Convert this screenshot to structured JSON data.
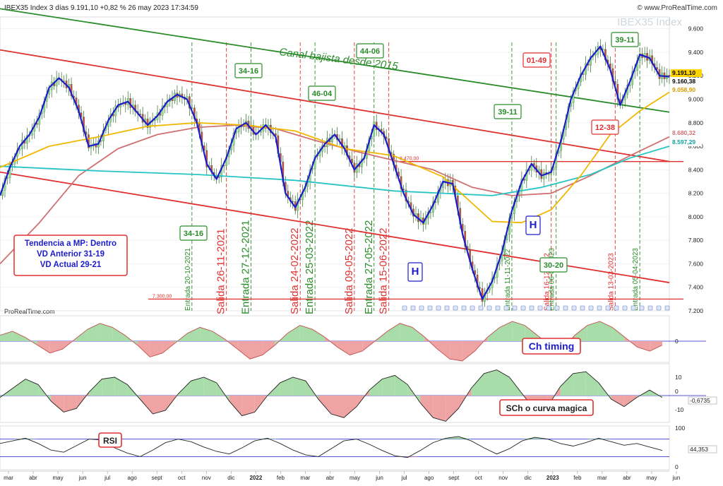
{
  "header": {
    "title": "IBEX35 Index 3 días 9.191,10 +0,82 % 26 may 2023 17:34:59",
    "source": "© www.ProRealTime.com",
    "watermark": "IBEX35 Index",
    "panel_credit": "ProRealTime.com"
  },
  "chart_data": [
    {
      "type": "line",
      "title": "IBEX35 Index 3 días",
      "x_ticks": [
        "mar",
        "abr",
        "may",
        "jun",
        "jul",
        "ago",
        "sept",
        "oct",
        "nov",
        "dic",
        "2022",
        "feb",
        "mar",
        "abr",
        "may",
        "jun",
        "jul",
        "ago",
        "sept",
        "oct",
        "nov",
        "dic",
        "2023",
        "feb",
        "mar",
        "abr",
        "may",
        "jun"
      ],
      "y_ticks": [
        "9.600",
        "9.400",
        "9.200",
        "9.000",
        "8.800",
        "8.600",
        "8.400",
        "8.200",
        "8.000",
        "7.800",
        "7.600",
        "7.400",
        "7.200"
      ],
      "ylim": [
        7200,
        9700
      ],
      "price_labels": [
        {
          "text": "9.191,10",
          "color": "#ffd400"
        },
        {
          "text": "9.160,38",
          "color": "#ffffff"
        },
        {
          "text": "9.058,90",
          "color": "#ffffff"
        },
        {
          "text": "8.680,32",
          "color": "#ffffff"
        },
        {
          "text": "8.597,29",
          "color": "#ffffff"
        }
      ],
      "series": [
        {
          "name": "Cierre",
          "color": "#1c1ccc",
          "points": [
            [
              0,
              8180
            ],
            [
              2,
              8420
            ],
            [
              4,
              8600
            ],
            [
              6,
              8700
            ],
            [
              8,
              8850
            ],
            [
              10,
              9100
            ],
            [
              12,
              9180
            ],
            [
              14,
              9100
            ],
            [
              16,
              8900
            ],
            [
              18,
              8600
            ],
            [
              20,
              8620
            ],
            [
              22,
              8820
            ],
            [
              24,
              8950
            ],
            [
              26,
              8980
            ],
            [
              28,
              8880
            ],
            [
              30,
              8780
            ],
            [
              32,
              8860
            ],
            [
              34,
              8980
            ],
            [
              36,
              9040
            ],
            [
              38,
              9000
            ],
            [
              40,
              8800
            ],
            [
              42,
              8450
            ],
            [
              44,
              8320
            ],
            [
              46,
              8500
            ],
            [
              48,
              8750
            ],
            [
              50,
              8800
            ],
            [
              52,
              8700
            ],
            [
              54,
              8780
            ],
            [
              56,
              8680
            ],
            [
              58,
              8200
            ],
            [
              60,
              8080
            ],
            [
              62,
              8250
            ],
            [
              64,
              8500
            ],
            [
              66,
              8620
            ],
            [
              68,
              8700
            ],
            [
              70,
              8580
            ],
            [
              72,
              8400
            ],
            [
              74,
              8500
            ],
            [
              76,
              8780
            ],
            [
              78,
              8700
            ],
            [
              80,
              8450
            ],
            [
              82,
              8200
            ],
            [
              84,
              8020
            ],
            [
              86,
              7950
            ],
            [
              88,
              8100
            ],
            [
              90,
              8300
            ],
            [
              92,
              8280
            ],
            [
              94,
              7850
            ],
            [
              96,
              7550
            ],
            [
              98,
              7300
            ],
            [
              100,
              7450
            ],
            [
              102,
              7700
            ],
            [
              104,
              8050
            ],
            [
              106,
              8300
            ],
            [
              108,
              8450
            ],
            [
              110,
              8350
            ],
            [
              112,
              8380
            ],
            [
              114,
              8650
            ],
            [
              116,
              9000
            ],
            [
              118,
              9200
            ],
            [
              120,
              9350
            ],
            [
              122,
              9450
            ],
            [
              124,
              9250
            ],
            [
              126,
              8950
            ],
            [
              128,
              9150
            ],
            [
              130,
              9380
            ],
            [
              132,
              9350
            ],
            [
              134,
              9200
            ],
            [
              136,
              9191
            ]
          ]
        },
        {
          "name": "Media móvil 50",
          "color": "#f0b800",
          "points": [
            [
              0,
              8420
            ],
            [
              10,
              8600
            ],
            [
              20,
              8680
            ],
            [
              30,
              8770
            ],
            [
              40,
              8800
            ],
            [
              50,
              8780
            ],
            [
              60,
              8730
            ],
            [
              70,
              8580
            ],
            [
              80,
              8520
            ],
            [
              90,
              8340
            ],
            [
              100,
              7960
            ],
            [
              106,
              7950
            ],
            [
              112,
              8060
            ],
            [
              118,
              8350
            ],
            [
              124,
              8700
            ],
            [
              130,
              8900
            ],
            [
              136,
              9060
            ]
          ]
        },
        {
          "name": "Media móvil 100",
          "color": "#d07070",
          "points": [
            [
              0,
              7600
            ],
            [
              8,
              7950
            ],
            [
              16,
              8350
            ],
            [
              24,
              8580
            ],
            [
              32,
              8700
            ],
            [
              40,
              8760
            ],
            [
              48,
              8780
            ],
            [
              56,
              8750
            ],
            [
              64,
              8650
            ],
            [
              72,
              8560
            ],
            [
              80,
              8480
            ],
            [
              88,
              8400
            ],
            [
              96,
              8250
            ],
            [
              104,
              8180
            ],
            [
              112,
              8200
            ],
            [
              120,
              8350
            ],
            [
              128,
              8520
            ],
            [
              136,
              8680
            ]
          ]
        },
        {
          "name": "Media móvil 200",
          "color": "#28c4c4",
          "points": [
            [
              0,
              8430
            ],
            [
              20,
              8390
            ],
            [
              40,
              8360
            ],
            [
              60,
              8310
            ],
            [
              80,
              8220
            ],
            [
              100,
              8180
            ],
            [
              110,
              8250
            ],
            [
              120,
              8360
            ],
            [
              128,
              8500
            ],
            [
              136,
              8600
            ]
          ]
        }
      ],
      "trend_lines": [
        {
          "color": "#2a8c2a",
          "from": [
            0,
            9770
          ],
          "to": [
            136,
            8890
          ]
        },
        {
          "color": "#e03030",
          "from": [
            0,
            9420
          ],
          "to": [
            136,
            8470
          ]
        },
        {
          "color": "#e03030",
          "from": [
            0,
            8380
          ],
          "to": [
            136,
            7440
          ]
        }
      ],
      "support_lines": [
        {
          "value": 8470,
          "label": "8.470,00"
        },
        {
          "value": 7300,
          "label": "7.300,00"
        }
      ],
      "annotations": {
        "channel": "Canal bajista desde 2015",
        "trend_box": [
          "Tendencia a MP: Dentro",
          "VD Anterior 31-19",
          "VD Actual 29-21"
        ],
        "boxes_green": [
          "34-16",
          "34-16",
          "46-04",
          "44-06",
          "39-11",
          "39-11",
          "30-20"
        ],
        "boxes_red": [
          "01-49",
          "12-38"
        ],
        "boxes_blue": [
          "H",
          "H"
        ],
        "signals": [
          {
            "t": "Entrada 20-10-2021",
            "c": "#2a8c2a"
          },
          {
            "t": "Salida 26-11-2021",
            "c": "#e03030"
          },
          {
            "t": "Entrada 27-12-2021",
            "c": "#2a8c2a"
          },
          {
            "t": "Salida 24-02-2022",
            "c": "#e03030"
          },
          {
            "t": "Entrada 25-03-2022",
            "c": "#2a8c2a"
          },
          {
            "t": "Salida 09-05-2022",
            "c": "#e03030"
          },
          {
            "t": "Entrada 27-05-2022",
            "c": "#2a8c2a"
          },
          {
            "t": "Salida 15-06-2022",
            "c": "#e03030"
          },
          {
            "t": "Entrada 11-11-2022",
            "c": "#2a8c2a"
          },
          {
            "t": "Salida 16-12-2022",
            "c": "#e03030"
          },
          {
            "t": "Entrada 06-01-2023",
            "c": "#2a8c2a"
          },
          {
            "t": "Salida 13-03-2023",
            "c": "#e03030"
          },
          {
            "t": "Entrada 05-04-2023",
            "c": "#2a8c2a"
          }
        ]
      }
    },
    {
      "type": "area",
      "title": "Ch timing",
      "y_ticks": [
        "0"
      ],
      "values": [
        0.3,
        0.5,
        0.2,
        -0.2,
        -0.6,
        -0.4,
        0.1,
        0.6,
        0.9,
        0.7,
        0.3,
        -0.2,
        -0.8,
        -0.6,
        -0.1,
        0.4,
        0.7,
        0.5,
        0.1,
        -0.4,
        -0.9,
        -0.7,
        -0.2,
        0.4,
        0.8,
        0.6,
        0.2,
        -0.3,
        -0.7,
        -0.5,
        0.0,
        0.5,
        0.9,
        0.7,
        0.2,
        -0.4,
        -0.9,
        -1.0,
        -0.5,
        0.2,
        0.7,
        1.0,
        0.8,
        0.3,
        -0.2,
        -0.4,
        0.3,
        0.8,
        1.0,
        0.7,
        0.2,
        -0.3,
        -0.5,
        -0.2
      ]
    },
    {
      "type": "area",
      "title": "SCh o curva magica",
      "y_ticks": [
        "10",
        "0",
        "-10"
      ],
      "current_value": "-0,6735",
      "values": [
        -1,
        4,
        9,
        6,
        -3,
        -9,
        -7,
        2,
        9,
        10,
        6,
        -2,
        -10,
        -8,
        1,
        8,
        10,
        7,
        -3,
        -11,
        -9,
        0,
        7,
        10,
        8,
        -2,
        -10,
        -12,
        -6,
        3,
        9,
        11,
        6,
        -4,
        -12,
        -14,
        -7,
        4,
        12,
        14,
        10,
        1,
        -8,
        -6,
        5,
        12,
        13,
        7,
        -2,
        -6,
        -1,
        3,
        -1
      ]
    },
    {
      "type": "line",
      "title": "RSI",
      "y_ticks": [
        "100",
        "0"
      ],
      "current_value": "44,353",
      "values": [
        60,
        66,
        72,
        60,
        45,
        40,
        55,
        70,
        68,
        50,
        38,
        30,
        45,
        62,
        70,
        64,
        52,
        42,
        36,
        50,
        66,
        72,
        60,
        45,
        34,
        30,
        48,
        66,
        70,
        58,
        44,
        32,
        28,
        44,
        62,
        72,
        76,
        66,
        50,
        36,
        48,
        66,
        74,
        70,
        60,
        54,
        62,
        72,
        64,
        56,
        60,
        52,
        44
      ]
    }
  ]
}
